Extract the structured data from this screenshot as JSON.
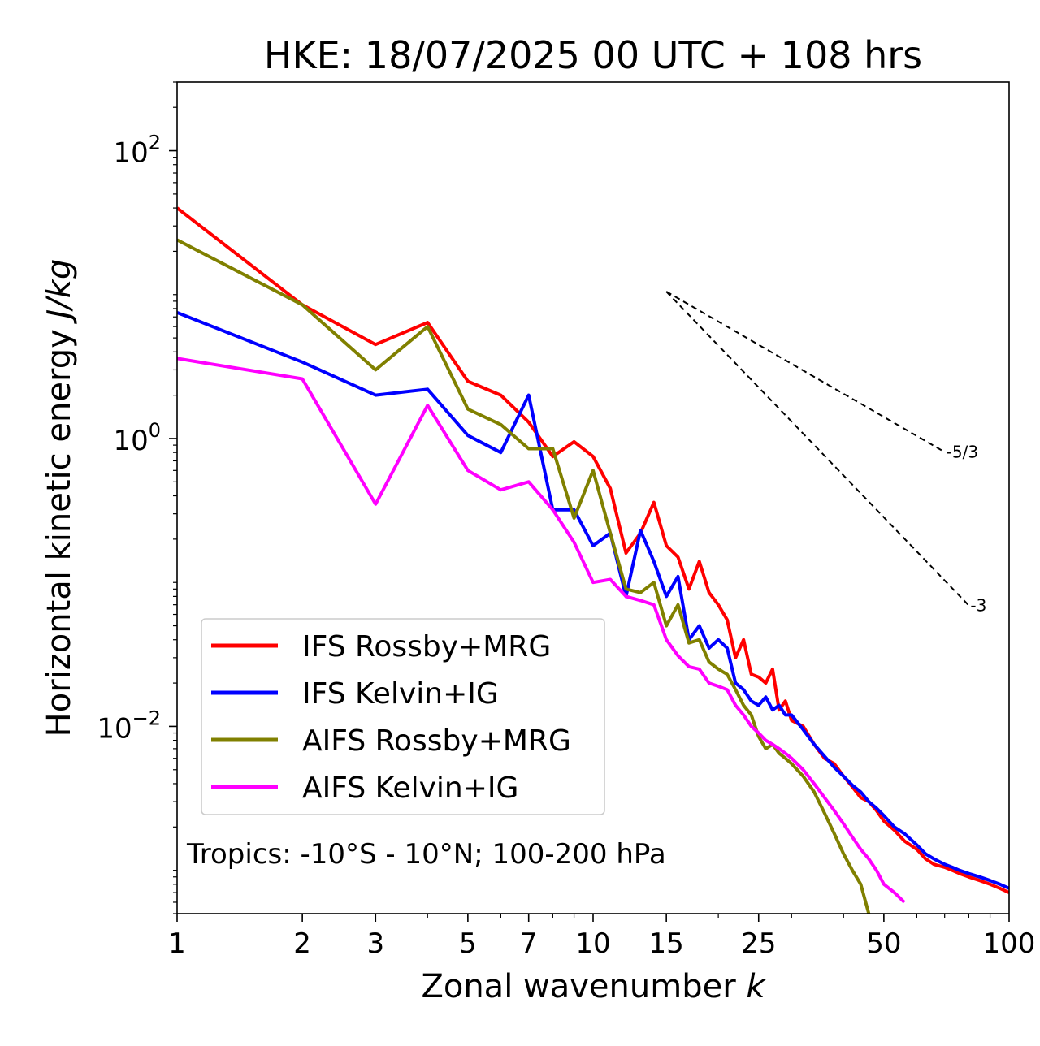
{
  "chart_data": {
    "type": "line",
    "title": "HKE: 18/07/2025 00 UTC + 108 hrs",
    "xlabel_main": "Zonal wavenumber ",
    "xlabel_italic": "k",
    "ylabel_main": "Horizontal kinetic energy ",
    "ylabel_italic": "J/kg",
    "x_scale": "log",
    "y_scale": "log",
    "xlim": [
      1,
      100
    ],
    "ylim": [
      0.0005,
      300
    ],
    "x_ticks": [
      1,
      2,
      3,
      5,
      7,
      10,
      15,
      25,
      50,
      100
    ],
    "x_tick_labels": [
      "1",
      "2",
      "3",
      "5",
      "7",
      "10",
      "15",
      "25",
      "50",
      "100"
    ],
    "y_ticks": [
      0.01,
      1,
      100
    ],
    "y_tick_labels": [
      {
        "base": "10",
        "exp": "−2"
      },
      {
        "base": "10",
        "exp": "0"
      },
      {
        "base": "10",
        "exp": "2"
      }
    ],
    "grid": false,
    "legend_position": "lower-left",
    "annotation": "Tropics: -10°S - 10°N; 100-200 hPa",
    "reference_lines": [
      {
        "label": "-5/3",
        "slope": -1.6667,
        "x": [
          15,
          70
        ],
        "y_start": 10.5
      },
      {
        "label": "-3",
        "slope": -3,
        "x": [
          15,
          80
        ],
        "y_start": 10.5
      }
    ],
    "series": [
      {
        "name": "IFS Rossby+MRG",
        "color": "#ff0000",
        "x": [
          1,
          2,
          3,
          4,
          5,
          6,
          7,
          8,
          9,
          10,
          11,
          12,
          13,
          14,
          15,
          16,
          17,
          18,
          19,
          20,
          21,
          22,
          23,
          24,
          25,
          26,
          27,
          28,
          29,
          30,
          32,
          34,
          36,
          38,
          40,
          42,
          44,
          46,
          48,
          50,
          53,
          56,
          60,
          63,
          66,
          70,
          73,
          76,
          80,
          85,
          90,
          95,
          100
        ],
        "y": [
          40,
          8.5,
          4.5,
          6.4,
          2.5,
          2.0,
          1.3,
          0.75,
          0.95,
          0.75,
          0.45,
          0.16,
          0.22,
          0.36,
          0.18,
          0.15,
          0.09,
          0.14,
          0.085,
          0.07,
          0.055,
          0.03,
          0.04,
          0.023,
          0.022,
          0.02,
          0.025,
          0.013,
          0.015,
          0.011,
          0.01,
          0.0075,
          0.006,
          0.0055,
          0.0045,
          0.0038,
          0.0032,
          0.003,
          0.0026,
          0.0022,
          0.0019,
          0.0016,
          0.0014,
          0.0012,
          0.0011,
          0.00105,
          0.001,
          0.00095,
          0.0009,
          0.00085,
          0.0008,
          0.00075,
          0.0007
        ]
      },
      {
        "name": "IFS Kelvin+IG",
        "color": "#0000ff",
        "x": [
          1,
          2,
          3,
          4,
          5,
          6,
          7,
          8,
          9,
          10,
          11,
          12,
          13,
          14,
          15,
          16,
          17,
          18,
          19,
          20,
          21,
          22,
          23,
          24,
          25,
          26,
          27,
          28,
          29,
          30,
          32,
          34,
          36,
          38,
          40,
          42,
          44,
          46,
          48,
          50,
          53,
          56,
          60,
          63,
          66,
          70,
          73,
          76,
          80,
          85,
          90,
          95,
          100
        ],
        "y": [
          7.5,
          3.4,
          2.0,
          2.2,
          1.05,
          0.8,
          2.0,
          0.32,
          0.32,
          0.18,
          0.22,
          0.08,
          0.23,
          0.14,
          0.08,
          0.11,
          0.04,
          0.05,
          0.035,
          0.04,
          0.035,
          0.02,
          0.018,
          0.015,
          0.014,
          0.016,
          0.013,
          0.014,
          0.012,
          0.012,
          0.0095,
          0.0075,
          0.0062,
          0.0052,
          0.0045,
          0.0039,
          0.0035,
          0.003,
          0.0027,
          0.0024,
          0.002,
          0.0018,
          0.0015,
          0.0013,
          0.0012,
          0.0011,
          0.00105,
          0.001,
          0.00095,
          0.0009,
          0.00085,
          0.0008,
          0.00075
        ]
      },
      {
        "name": "AIFS Rossby+MRG",
        "color": "#808000",
        "x": [
          1,
          2,
          3,
          4,
          5,
          6,
          7,
          8,
          9,
          10,
          11,
          12,
          13,
          14,
          15,
          16,
          17,
          18,
          19,
          20,
          21,
          22,
          23,
          24,
          25,
          26,
          27,
          28,
          29,
          30,
          32,
          34,
          36,
          38,
          40,
          42,
          44,
          46
        ],
        "y": [
          24,
          8.5,
          3.0,
          6.0,
          1.6,
          1.25,
          0.85,
          0.85,
          0.28,
          0.6,
          0.22,
          0.09,
          0.085,
          0.1,
          0.05,
          0.07,
          0.038,
          0.04,
          0.028,
          0.025,
          0.023,
          0.018,
          0.014,
          0.012,
          0.0085,
          0.007,
          0.0075,
          0.0065,
          0.006,
          0.0055,
          0.0045,
          0.0035,
          0.0025,
          0.0018,
          0.0013,
          0.001,
          0.0008,
          0.0005
        ]
      },
      {
        "name": "AIFS Kelvin+IG",
        "color": "#ff00ff",
        "x": [
          1,
          2,
          3,
          4,
          5,
          6,
          7,
          8,
          9,
          10,
          11,
          12,
          13,
          14,
          15,
          16,
          17,
          18,
          19,
          20,
          21,
          22,
          23,
          24,
          25,
          26,
          27,
          28,
          29,
          30,
          32,
          34,
          36,
          38,
          40,
          42,
          44,
          46,
          48,
          50,
          53,
          56
        ],
        "y": [
          3.6,
          2.6,
          0.35,
          1.7,
          0.6,
          0.44,
          0.5,
          0.32,
          0.19,
          0.1,
          0.105,
          0.08,
          0.075,
          0.07,
          0.04,
          0.031,
          0.026,
          0.025,
          0.02,
          0.019,
          0.018,
          0.014,
          0.012,
          0.01,
          0.009,
          0.008,
          0.0075,
          0.007,
          0.0065,
          0.006,
          0.005,
          0.004,
          0.0032,
          0.0026,
          0.0021,
          0.0017,
          0.0014,
          0.0012,
          0.001,
          0.0008,
          0.0007,
          0.0006
        ]
      }
    ]
  }
}
